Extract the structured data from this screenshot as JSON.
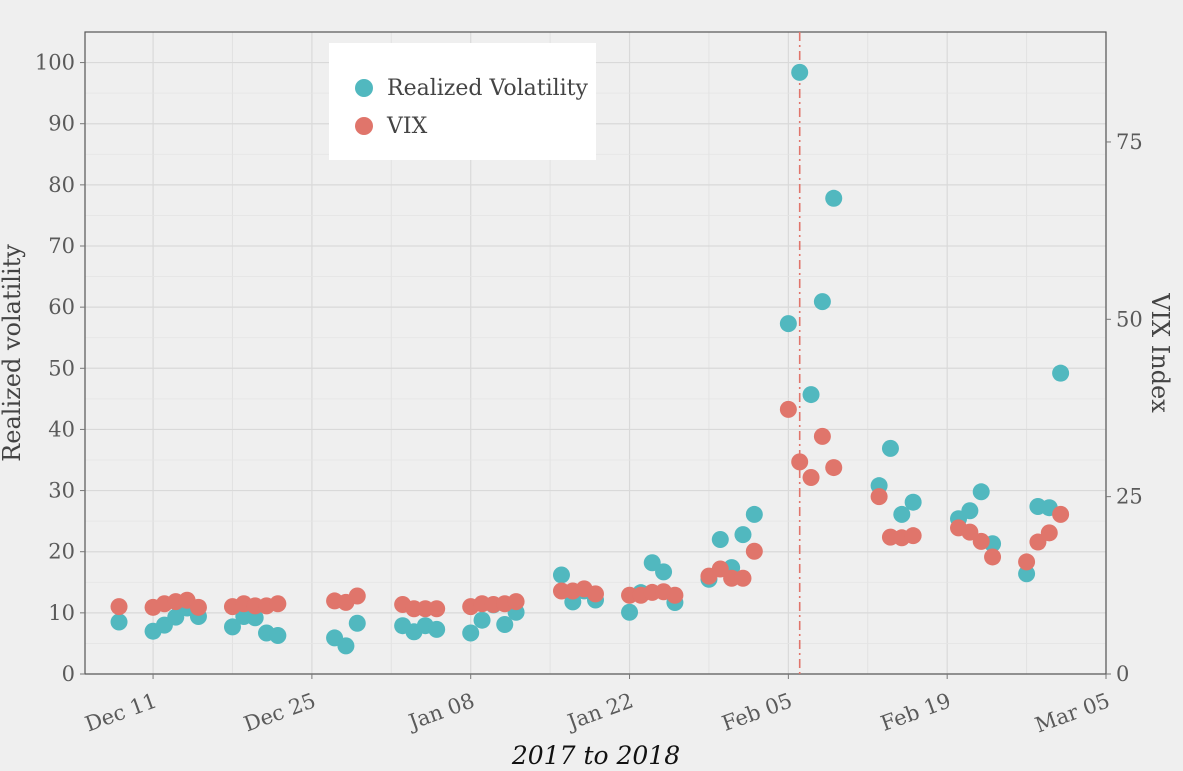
{
  "chart_data": {
    "type": "scatter",
    "xlabel": "2017 to 2018",
    "ylabel": "Realized volatility",
    "y2label": "VIX Index",
    "xlim": [
      "2017-12-05",
      "2018-03-05"
    ],
    "ylim": [
      0,
      105
    ],
    "y2lim": [
      0,
      90.5
    ],
    "x_ticks": [
      {
        "date": "2017-12-11",
        "label": "Dec 11"
      },
      {
        "date": "2017-12-25",
        "label": "Dec 25"
      },
      {
        "date": "2018-01-08",
        "label": "Jan 08"
      },
      {
        "date": "2018-01-22",
        "label": "Jan 22"
      },
      {
        "date": "2018-02-05",
        "label": "Feb 05"
      },
      {
        "date": "2018-02-19",
        "label": "Feb 19"
      },
      {
        "date": "2018-03-05",
        "label": "Mar 05"
      }
    ],
    "y_ticks": [
      0,
      10,
      20,
      30,
      40,
      50,
      60,
      70,
      80,
      90,
      100
    ],
    "y2_ticks": [
      0,
      25,
      50,
      75
    ],
    "grid": true,
    "legend": {
      "placement": "top-left"
    },
    "vline": {
      "date": "2018-02-06",
      "color": "#e0756b",
      "style": "dash-dot"
    },
    "series": [
      {
        "name": "Realized Volatility",
        "color": "#51b8bf",
        "axis": "left",
        "points": [
          [
            "2017-12-08",
            8.5
          ],
          [
            "2017-12-11",
            7.0
          ],
          [
            "2017-12-12",
            8.0
          ],
          [
            "2017-12-13",
            9.3
          ],
          [
            "2017-12-14",
            10.8
          ],
          [
            "2017-12-15",
            9.4
          ],
          [
            "2017-12-18",
            7.7
          ],
          [
            "2017-12-19",
            9.4
          ],
          [
            "2017-12-20",
            9.2
          ],
          [
            "2017-12-21",
            6.7
          ],
          [
            "2017-12-22",
            6.3
          ],
          [
            "2017-12-27",
            5.9
          ],
          [
            "2017-12-28",
            4.6
          ],
          [
            "2017-12-29",
            8.3
          ],
          [
            "2018-01-02",
            7.9
          ],
          [
            "2018-01-03",
            6.9
          ],
          [
            "2018-01-04",
            7.9
          ],
          [
            "2018-01-05",
            7.3
          ],
          [
            "2018-01-08",
            6.7
          ],
          [
            "2018-01-09",
            8.8
          ],
          [
            "2018-01-10",
            11.3
          ],
          [
            "2018-01-11",
            8.1
          ],
          [
            "2018-01-12",
            10.1
          ],
          [
            "2018-01-16",
            16.2
          ],
          [
            "2018-01-17",
            11.8
          ],
          [
            "2018-01-18",
            13.6
          ],
          [
            "2018-01-19",
            12.1
          ],
          [
            "2018-01-22",
            10.1
          ],
          [
            "2018-01-23",
            13.3
          ],
          [
            "2018-01-24",
            18.2
          ],
          [
            "2018-01-25",
            16.7
          ],
          [
            "2018-01-26",
            11.7
          ],
          [
            "2018-01-29",
            15.5
          ],
          [
            "2018-01-30",
            22.0
          ],
          [
            "2018-01-31",
            17.4
          ],
          [
            "2018-02-01",
            22.8
          ],
          [
            "2018-02-02",
            26.1
          ],
          [
            "2018-02-05",
            57.3
          ],
          [
            "2018-02-06",
            98.4
          ],
          [
            "2018-02-07",
            45.7
          ],
          [
            "2018-02-08",
            60.9
          ],
          [
            "2018-02-09",
            77.8
          ],
          [
            "2018-02-13",
            30.8
          ],
          [
            "2018-02-14",
            36.9
          ],
          [
            "2018-02-15",
            26.1
          ],
          [
            "2018-02-16",
            28.1
          ],
          [
            "2018-02-20",
            25.4
          ],
          [
            "2018-02-21",
            26.7
          ],
          [
            "2018-02-22",
            29.8
          ],
          [
            "2018-02-23",
            21.3
          ],
          [
            "2018-02-26",
            16.4
          ],
          [
            "2018-02-27",
            27.4
          ],
          [
            "2018-02-28",
            27.2
          ],
          [
            "2018-03-01",
            49.2
          ]
        ]
      },
      {
        "name": "VIX",
        "color": "#e0756b",
        "axis": "right",
        "points": [
          [
            "2017-12-08",
            9.5
          ],
          [
            "2017-12-11",
            9.4
          ],
          [
            "2017-12-12",
            9.9
          ],
          [
            "2017-12-13",
            10.2
          ],
          [
            "2017-12-14",
            10.4
          ],
          [
            "2017-12-15",
            9.4
          ],
          [
            "2017-12-18",
            9.5
          ],
          [
            "2017-12-19",
            9.9
          ],
          [
            "2017-12-20",
            9.6
          ],
          [
            "2017-12-21",
            9.6
          ],
          [
            "2017-12-22",
            9.9
          ],
          [
            "2017-12-27",
            10.3
          ],
          [
            "2017-12-28",
            10.1
          ],
          [
            "2017-12-29",
            11.0
          ],
          [
            "2018-01-02",
            9.8
          ],
          [
            "2018-01-03",
            9.2
          ],
          [
            "2018-01-04",
            9.2
          ],
          [
            "2018-01-05",
            9.2
          ],
          [
            "2018-01-08",
            9.5
          ],
          [
            "2018-01-09",
            9.9
          ],
          [
            "2018-01-10",
            9.8
          ],
          [
            "2018-01-11",
            9.9
          ],
          [
            "2018-01-12",
            10.2
          ],
          [
            "2018-01-16",
            11.7
          ],
          [
            "2018-01-17",
            11.7
          ],
          [
            "2018-01-18",
            12.0
          ],
          [
            "2018-01-19",
            11.3
          ],
          [
            "2018-01-22",
            11.1
          ],
          [
            "2018-01-23",
            11.1
          ],
          [
            "2018-01-24",
            11.5
          ],
          [
            "2018-01-25",
            11.6
          ],
          [
            "2018-01-26",
            11.1
          ],
          [
            "2018-01-29",
            13.8
          ],
          [
            "2018-01-30",
            14.8
          ],
          [
            "2018-01-31",
            13.5
          ],
          [
            "2018-02-01",
            13.5
          ],
          [
            "2018-02-02",
            17.3
          ],
          [
            "2018-02-05",
            37.3
          ],
          [
            "2018-02-06",
            29.9
          ],
          [
            "2018-02-07",
            27.7
          ],
          [
            "2018-02-08",
            33.5
          ],
          [
            "2018-02-09",
            29.1
          ],
          [
            "2018-02-13",
            25.0
          ],
          [
            "2018-02-14",
            19.3
          ],
          [
            "2018-02-15",
            19.2
          ],
          [
            "2018-02-16",
            19.5
          ],
          [
            "2018-02-20",
            20.6
          ],
          [
            "2018-02-21",
            20.0
          ],
          [
            "2018-02-22",
            18.7
          ],
          [
            "2018-02-23",
            16.5
          ],
          [
            "2018-02-26",
            15.8
          ],
          [
            "2018-02-27",
            18.6
          ],
          [
            "2018-02-28",
            19.9
          ],
          [
            "2018-03-01",
            22.5
          ]
        ]
      }
    ]
  }
}
